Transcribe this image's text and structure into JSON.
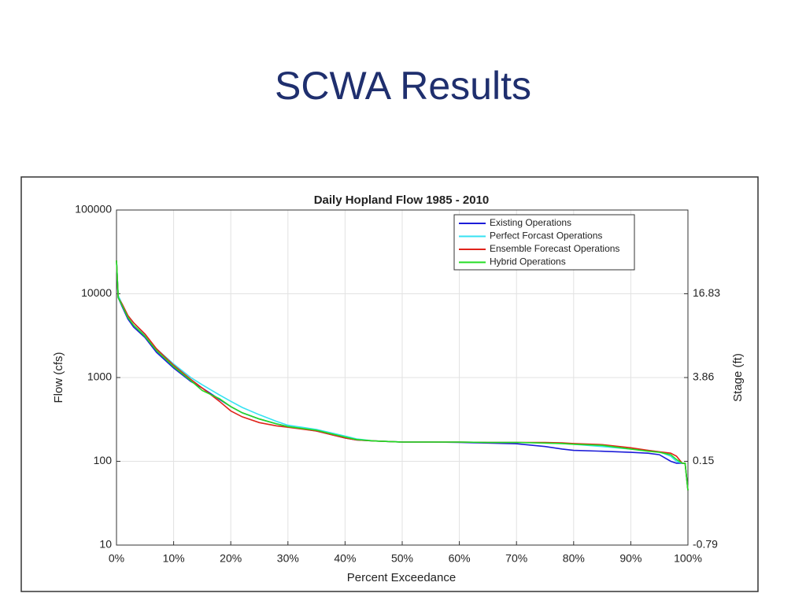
{
  "slide": {
    "title": "SCWA Results"
  },
  "chart_data": {
    "type": "line",
    "title": "Daily Hopland Flow 1985 - 2010",
    "x_label": "Percent Exceedance",
    "y_label": "Flow (cfs)",
    "y2_label": "Stage (ft)",
    "x": [
      0,
      0.3,
      1,
      2,
      3,
      5,
      7,
      10,
      13,
      15,
      18,
      20,
      22,
      25,
      28,
      30,
      35,
      40,
      42,
      45,
      50,
      55,
      60,
      65,
      70,
      75,
      78,
      80,
      85,
      90,
      93,
      95,
      97,
      98,
      99,
      99.5,
      100
    ],
    "series": [
      {
        "name": "Existing Operations",
        "color": "#1c1cd8",
        "values": [
          25000,
          9000,
          7000,
          5000,
          4000,
          3000,
          2000,
          1300,
          900,
          750,
          550,
          450,
          380,
          320,
          280,
          260,
          230,
          190,
          180,
          175,
          170,
          170,
          168,
          165,
          162,
          150,
          140,
          135,
          132,
          128,
          125,
          120,
          100,
          95,
          95,
          95,
          45
        ]
      },
      {
        "name": "Perfect Forcast Operations",
        "color": "#36e2f2",
        "values": [
          25000,
          9500,
          7500,
          5500,
          4500,
          3200,
          2200,
          1450,
          1000,
          820,
          620,
          520,
          440,
          360,
          300,
          270,
          240,
          200,
          185,
          175,
          170,
          170,
          170,
          168,
          168,
          165,
          163,
          160,
          150,
          140,
          135,
          130,
          115,
          100,
          95,
          95,
          45
        ]
      },
      {
        "name": "Ensemble Forecast Operations",
        "color": "#e0231a",
        "values": [
          25000,
          9000,
          7500,
          5500,
          4500,
          3300,
          2200,
          1400,
          950,
          750,
          520,
          400,
          340,
          290,
          265,
          255,
          230,
          190,
          180,
          175,
          170,
          170,
          170,
          168,
          168,
          168,
          166,
          163,
          158,
          145,
          135,
          130,
          125,
          115,
          95,
          95,
          45
        ]
      },
      {
        "name": "Hybrid Operations",
        "color": "#22dd22",
        "values": [
          25000,
          9000,
          7200,
          5200,
          4200,
          3100,
          2100,
          1350,
          920,
          700,
          560,
          450,
          380,
          320,
          280,
          260,
          235,
          195,
          182,
          175,
          170,
          170,
          170,
          168,
          168,
          165,
          163,
          160,
          155,
          140,
          132,
          128,
          120,
          105,
          95,
          95,
          45
        ]
      }
    ],
    "xlim": [
      0,
      100
    ],
    "xticks": [
      {
        "value": 0,
        "label": "0%"
      },
      {
        "value": 10,
        "label": "10%"
      },
      {
        "value": 20,
        "label": "20%"
      },
      {
        "value": 30,
        "label": "30%"
      },
      {
        "value": 40,
        "label": "40%"
      },
      {
        "value": 50,
        "label": "50%"
      },
      {
        "value": 60,
        "label": "60%"
      },
      {
        "value": 70,
        "label": "70%"
      },
      {
        "value": 80,
        "label": "80%"
      },
      {
        "value": 90,
        "label": "90%"
      },
      {
        "value": 100,
        "label": "100%"
      }
    ],
    "ylim": [
      10,
      100000
    ],
    "yticks": [
      10,
      100,
      1000,
      10000,
      100000
    ],
    "log_y": true,
    "y2ticks": [
      -0.79,
      0.15,
      3.86,
      16.83
    ],
    "grid": true,
    "legend": "upper-right"
  }
}
